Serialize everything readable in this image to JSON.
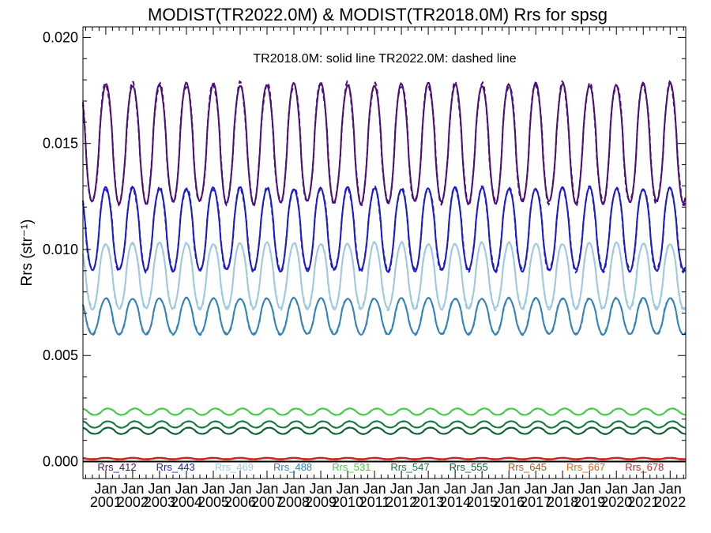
{
  "chart_data": {
    "type": "line",
    "title": "MODIST(TR2022.0M) & MODIST(TR2018.0M)  Rrs for spsg",
    "annotation": "TR2018.0M: solid line   TR2022.0M: dashed line",
    "ylabel": "Rrs (str⁻¹)",
    "ylim": [
      -0.0008,
      0.0205
    ],
    "yticks": [
      "0.000",
      "0.005",
      "0.010",
      "0.015",
      "0.020"
    ],
    "ytick_values": [
      0.0,
      0.005,
      0.01,
      0.015,
      0.02
    ],
    "xlim": [
      2000.15,
      2022.58
    ],
    "xticks_top": [
      "Jan",
      "Jan",
      "Jan",
      "Jan",
      "Jan",
      "Jan",
      "Jan",
      "Jan",
      "Jan",
      "Jan",
      "Jan",
      "Jan",
      "Jan",
      "Jan",
      "Jan",
      "Jan",
      "Jan",
      "Jan",
      "Jan",
      "Jan",
      "Jan",
      "Jan"
    ],
    "xticks_bottom": [
      "2001",
      "2002",
      "2003",
      "2004",
      "2005",
      "2006",
      "2007",
      "2008",
      "2009",
      "2010",
      "2011",
      "2012",
      "2013",
      "2014",
      "2015",
      "2016",
      "2017",
      "2018",
      "2019",
      "2020",
      "2021",
      "2022"
    ],
    "xtick_values": [
      2001,
      2002,
      2003,
      2004,
      2005,
      2006,
      2007,
      2008,
      2009,
      2010,
      2011,
      2012,
      2013,
      2014,
      2015,
      2016,
      2017,
      2018,
      2019,
      2020,
      2021,
      2022
    ],
    "line_styles": {
      "TR2018.0M": "solid",
      "TR2022.0M": "dashed"
    },
    "series": [
      {
        "name": "Rrs_412",
        "color": "#4b0e7a",
        "minimum": 0.0122,
        "maximum": 0.0178,
        "annual_peak_month": 1.0
      },
      {
        "name": "Rrs_443",
        "color": "#1a1ad6",
        "minimum": 0.009,
        "maximum": 0.0129,
        "annual_peak_month": 1.0
      },
      {
        "name": "Rrs_469",
        "color": "#9ec9e2",
        "minimum": 0.0072,
        "maximum": 0.0103,
        "annual_peak_month": 1.0
      },
      {
        "name": "Rrs_488",
        "color": "#3282bd",
        "minimum": 0.006,
        "maximum": 0.0077,
        "annual_peak_month": 1.0
      },
      {
        "name": "Rrs_531",
        "color": "#3fcc3f",
        "minimum": 0.0022,
        "maximum": 0.0025,
        "annual_peak_month": 2.0
      },
      {
        "name": "Rrs_547",
        "color": "#137a3d",
        "minimum": 0.0016,
        "maximum": 0.0019,
        "annual_peak_month": 2.0
      },
      {
        "name": "Rrs_555",
        "color": "#0d5e2e",
        "minimum": 0.0013,
        "maximum": 0.0016,
        "annual_peak_month": 2.0
      },
      {
        "name": "Rrs_645",
        "color": "#b5562a",
        "minimum": 0.00012,
        "maximum": 0.00018,
        "annual_peak_month": 1.0
      },
      {
        "name": "Rrs_667",
        "color": "#e0621c",
        "minimum": 0.0001,
        "maximum": 0.00016,
        "annual_peak_month": 1.0
      },
      {
        "name": "Rrs_678",
        "color": "#c8262a",
        "minimum": 0.0001,
        "maximum": 0.00017,
        "annual_peak_month": 1.0
      }
    ]
  }
}
